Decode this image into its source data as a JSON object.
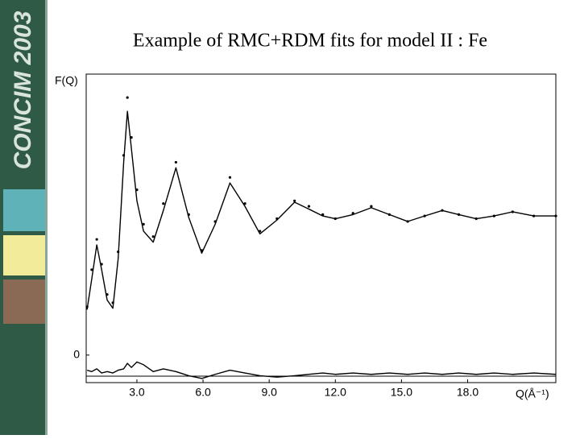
{
  "sidebar": {
    "text": "CONCIM 2003"
  },
  "chart_data": {
    "type": "line",
    "title": "Example of RMC+RDM fits for model II : Fe",
    "y_label": "F(Q)",
    "x_label": "Q(Å⁻¹)",
    "x": [
      0.74,
      0.95,
      1.18,
      1.4,
      1.65,
      1.91,
      2.15,
      2.4,
      2.57,
      2.75,
      3.0,
      3.3,
      3.74,
      4.2,
      4.77,
      5.35,
      5.94,
      6.55,
      7.22,
      7.9,
      8.58,
      9.35,
      10.15,
      10.8,
      11.43,
      12.0,
      12.8,
      13.63,
      14.45,
      15.28,
      16.05,
      16.85,
      17.6,
      18.39,
      19.2,
      20.04,
      21.0,
      22.0
    ],
    "series": [
      {
        "color": "#000000",
        "mode": "lines",
        "values": [
          0.33,
          0.55,
          0.8,
          0.62,
          0.4,
          0.34,
          0.7,
          1.4,
          1.77,
          1.5,
          1.12,
          0.9,
          0.82,
          1.05,
          1.36,
          1.0,
          0.74,
          0.95,
          1.25,
          1.08,
          0.88,
          0.98,
          1.11,
          1.06,
          1.01,
          0.99,
          1.02,
          1.07,
          1.02,
          0.97,
          1.01,
          1.05,
          1.02,
          0.99,
          1.01,
          1.04,
          1.01,
          1.01
        ]
      },
      {
        "color": "#000000",
        "mode": "markers",
        "values": [
          0.35,
          0.62,
          0.84,
          0.66,
          0.44,
          0.38,
          0.75,
          1.45,
          1.87,
          1.58,
          1.2,
          0.95,
          0.86,
          1.1,
          1.4,
          1.02,
          0.76,
          0.97,
          1.29,
          1.1,
          0.9,
          0.99,
          1.12,
          1.08,
          1.02,
          0.99,
          1.03,
          1.08,
          1.02,
          0.97,
          1.01,
          1.05,
          1.02,
          0.99,
          1.01,
          1.04,
          1.01,
          1.01
        ]
      },
      {
        "color": "#000000",
        "mode": "lines",
        "values": [
          -0.11,
          -0.12,
          -0.1,
          -0.13,
          -0.12,
          -0.13,
          -0.11,
          -0.1,
          -0.06,
          -0.09,
          -0.05,
          -0.07,
          -0.12,
          -0.1,
          -0.12,
          -0.15,
          -0.17,
          -0.14,
          -0.11,
          -0.13,
          -0.15,
          -0.16,
          -0.15,
          -0.14,
          -0.13,
          -0.14,
          -0.13,
          -0.14,
          -0.13,
          -0.14,
          -0.13,
          -0.14,
          -0.13,
          -0.14,
          -0.13,
          -0.14,
          -0.13,
          -0.14
        ]
      }
    ],
    "xlim": [
      0.7,
      22.0
    ],
    "ylim": [
      -0.2,
      2.04
    ],
    "xticks": [
      {
        "value": 3,
        "label": "3.0"
      },
      {
        "value": 6,
        "label": "6.0"
      },
      {
        "value": 9,
        "label": "9.0"
      },
      {
        "value": 12,
        "label": "12.0"
      },
      {
        "value": 15,
        "label": "15.0"
      },
      {
        "value": 18,
        "label": "18.0"
      }
    ],
    "yticks": [
      0
    ]
  }
}
